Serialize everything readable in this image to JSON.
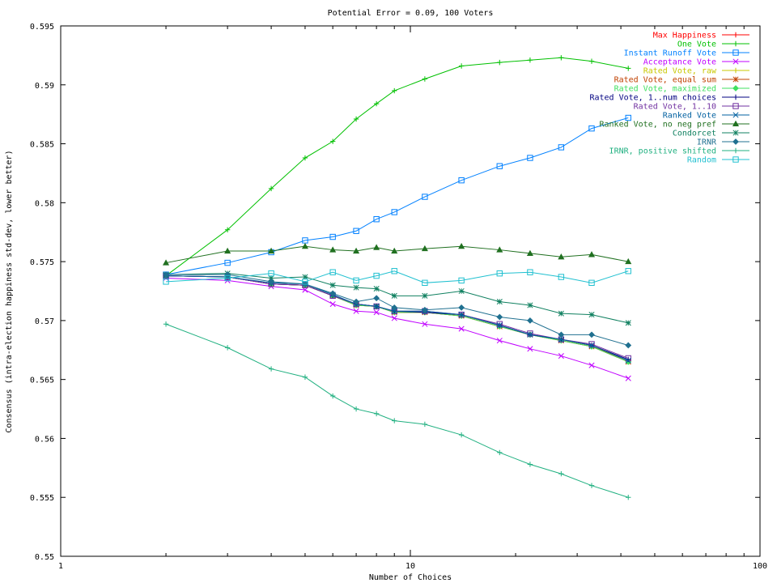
{
  "chart_data": {
    "type": "line",
    "title": "Potential Error = 0.09, 100 Voters",
    "xlabel": "Number of Choices",
    "ylabel": "Consensus (intra-election happiness std-dev, lower better)",
    "xscale": "log",
    "xlim": [
      1,
      100
    ],
    "ylim": [
      0.55,
      0.595
    ],
    "xticks": [
      1,
      10,
      100
    ],
    "xtick_labels": [
      "1",
      "10",
      "100"
    ],
    "yticks": [
      0.55,
      0.555,
      0.56,
      0.565,
      0.57,
      0.575,
      0.58,
      0.585,
      0.59,
      0.595
    ],
    "ytick_labels": [
      "0.55",
      "0.555",
      "0.56",
      "0.565",
      "0.57",
      "0.575",
      "0.58",
      "0.585",
      "0.59",
      "0.595"
    ],
    "grid": false,
    "legend_position": "top-right",
    "x": [
      2,
      3,
      4,
      5,
      6,
      7,
      8,
      9,
      11,
      14,
      18,
      22,
      27,
      33,
      42
    ],
    "series": [
      {
        "name": "Max Happiness",
        "color": "#ff0000",
        "marker": "plus",
        "values": [
          0.5738,
          0.5737,
          0.5731,
          0.573,
          0.5721,
          0.5714,
          0.5712,
          0.5707,
          0.5707,
          0.5704,
          0.5695,
          0.5688,
          0.5684,
          0.5679,
          0.5665
        ]
      },
      {
        "name": "One Vote",
        "color": "#00c000",
        "marker": "plus",
        "values": [
          0.5738,
          0.5777,
          0.5812,
          0.5838,
          0.5852,
          0.5871,
          0.5884,
          0.5895,
          0.5905,
          0.5916,
          0.5919,
          0.5921,
          0.5923,
          0.592,
          0.5914
        ]
      },
      {
        "name": "Instant Runoff Vote",
        "color": "#0080ff",
        "marker": "square",
        "values": [
          0.5739,
          0.5749,
          0.5758,
          0.5768,
          0.5771,
          0.5776,
          0.5786,
          0.5792,
          0.5805,
          0.5819,
          0.5831,
          0.5838,
          0.5847,
          0.5863,
          0.5872
        ]
      },
      {
        "name": "Acceptance Vote",
        "color": "#c000ff",
        "marker": "x",
        "values": [
          0.5736,
          0.5734,
          0.5729,
          0.5726,
          0.5714,
          0.5708,
          0.5707,
          0.5702,
          0.5697,
          0.5693,
          0.5683,
          0.5676,
          0.567,
          0.5662,
          0.5651
        ]
      },
      {
        "name": "Rated Vote, raw",
        "color": "#c8c800",
        "marker": "plus",
        "values": [
          0.5738,
          0.5737,
          0.5731,
          0.573,
          0.5721,
          0.5713,
          0.5712,
          0.5707,
          0.5707,
          0.5704,
          0.5695,
          0.5688,
          0.5683,
          0.5678,
          0.5665
        ]
      },
      {
        "name": "Rated Vote, equal sum",
        "color": "#c04000",
        "marker": "star",
        "values": [
          0.5738,
          0.5737,
          0.5731,
          0.573,
          0.5721,
          0.5713,
          0.5712,
          0.5707,
          0.5707,
          0.5704,
          0.5695,
          0.5688,
          0.5683,
          0.5678,
          0.5665
        ]
      },
      {
        "name": "Rated Vote, maximized",
        "color": "#40e060",
        "marker": "diamond",
        "values": [
          0.5738,
          0.5737,
          0.5731,
          0.573,
          0.5721,
          0.5713,
          0.5712,
          0.5707,
          0.5707,
          0.5704,
          0.5695,
          0.5688,
          0.5683,
          0.5678,
          0.5665
        ]
      },
      {
        "name": "Rated Vote, 1..num choices",
        "color": "#000080",
        "marker": "plus",
        "values": [
          0.5738,
          0.5737,
          0.5731,
          0.573,
          0.5721,
          0.5714,
          0.5712,
          0.5708,
          0.5707,
          0.5705,
          0.5696,
          0.5688,
          0.5684,
          0.5679,
          0.5667
        ]
      },
      {
        "name": "Rated Vote, 1..10",
        "color": "#7030a0",
        "marker": "square",
        "values": [
          0.5738,
          0.5737,
          0.5731,
          0.573,
          0.5721,
          0.5714,
          0.5712,
          0.5708,
          0.5708,
          0.5705,
          0.5697,
          0.5689,
          0.5684,
          0.568,
          0.5668
        ]
      },
      {
        "name": "Ranked Vote",
        "color": "#0060a0",
        "marker": "x",
        "values": [
          0.5738,
          0.5737,
          0.5732,
          0.5731,
          0.5722,
          0.5714,
          0.5712,
          0.5708,
          0.5708,
          0.5705,
          0.5696,
          0.5688,
          0.5684,
          0.5679,
          0.5666
        ]
      },
      {
        "name": "Ranked Vote, no neg pref",
        "color": "#207020",
        "marker": "triangle",
        "values": [
          0.5749,
          0.5759,
          0.5759,
          0.5763,
          0.576,
          0.5759,
          0.5762,
          0.5759,
          0.5761,
          0.5763,
          0.576,
          0.5757,
          0.5754,
          0.5756,
          0.575
        ]
      },
      {
        "name": "Condorcet",
        "color": "#108060",
        "marker": "star",
        "values": [
          0.5739,
          0.574,
          0.5736,
          0.5737,
          0.573,
          0.5728,
          0.5727,
          0.5721,
          0.5721,
          0.5725,
          0.5716,
          0.5713,
          0.5706,
          0.5705,
          0.5698
        ]
      },
      {
        "name": "IRNR",
        "color": "#207090",
        "marker": "diamond",
        "values": [
          0.5739,
          0.5739,
          0.5733,
          0.5731,
          0.5723,
          0.5716,
          0.5719,
          0.5711,
          0.5709,
          0.5711,
          0.5703,
          0.57,
          0.5688,
          0.5688,
          0.5679
        ]
      },
      {
        "name": "IRNR, positive shifted",
        "color": "#20b080",
        "marker": "plus",
        "values": [
          0.5697,
          0.5677,
          0.5659,
          0.5652,
          0.5636,
          0.5625,
          0.5621,
          0.5615,
          0.5612,
          0.5603,
          0.5588,
          0.5578,
          0.557,
          0.556,
          0.555
        ]
      },
      {
        "name": "Random",
        "color": "#20c0d0",
        "marker": "square",
        "values": [
          0.5733,
          0.5736,
          0.574,
          0.5733,
          0.5741,
          0.5734,
          0.5738,
          0.5742,
          0.5732,
          0.5734,
          0.574,
          0.5741,
          0.5737,
          0.5732,
          0.5742
        ]
      }
    ]
  }
}
